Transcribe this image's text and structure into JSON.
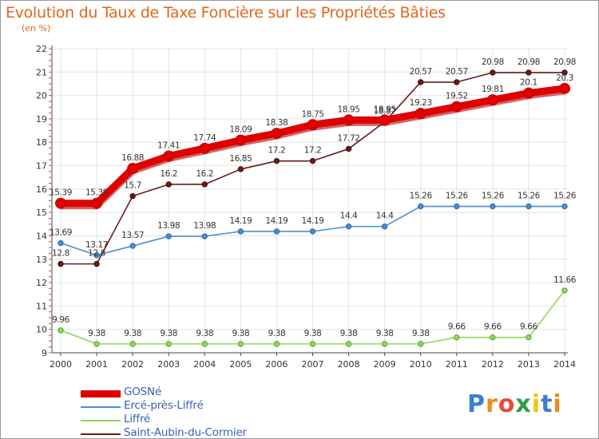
{
  "header": {
    "title": "Evolution du Taux de Taxe Foncière sur les Propriétés Bâties",
    "subtitle": "(en %)"
  },
  "logo": {
    "text": "Proxiti"
  },
  "chart_data": {
    "type": "line",
    "title": "Evolution du Taux de Taxe Foncière sur les Propriétés Bâties",
    "ylabel": "(en %)",
    "xlabel": "",
    "x": [
      2000,
      2001,
      2002,
      2003,
      2004,
      2005,
      2006,
      2007,
      2008,
      2009,
      2010,
      2011,
      2012,
      2013,
      2014
    ],
    "x_labels": [
      "2000",
      "2001",
      "2002",
      "2003",
      "2004",
      "2005",
      "2006",
      "2007",
      "2008",
      "2009",
      "2010",
      "2011",
      "2012",
      "2013",
      "2014"
    ],
    "ylim": [
      9,
      22
    ],
    "yticks": [
      9,
      10,
      11,
      12,
      13,
      14,
      15,
      16,
      17,
      18,
      19,
      20,
      21,
      22
    ],
    "ytick_labels": [
      "9",
      "10",
      "11",
      "12",
      "13",
      "14",
      "15",
      "16",
      "17",
      "18",
      "19",
      "20",
      "21",
      "22"
    ],
    "grid": true,
    "legend_position": "bottom-left",
    "series": [
      {
        "name": "GOSNé",
        "color": "#e00000",
        "values": [
          15.39,
          15.39,
          16.88,
          17.41,
          17.74,
          18.09,
          18.38,
          18.75,
          18.95,
          18.95,
          19.23,
          19.52,
          19.81,
          20.1,
          20.3
        ],
        "labels": [
          "15.39",
          "15.39",
          "16.88",
          "17.41",
          "17.74",
          "18.09",
          "18.38",
          "18.75",
          "18.95",
          "18.95",
          "19.23",
          "19.52",
          "19.81",
          "20.1",
          "20.3"
        ]
      },
      {
        "name": "Ercé-près-Liffré",
        "color": "#4a8fd0",
        "values": [
          13.69,
          13.17,
          13.57,
          13.98,
          13.98,
          14.19,
          14.19,
          14.19,
          14.4,
          14.4,
          15.26,
          15.26,
          15.26,
          15.26,
          15.26
        ],
        "labels": [
          "13.69",
          "13.17",
          "13.57",
          "13.98",
          "13.98",
          "14.19",
          "14.19",
          "14.19",
          "14.4",
          "14.4",
          "15.26",
          "15.26",
          "15.26",
          "15.26",
          "15.26"
        ]
      },
      {
        "name": "Liffré",
        "color": "#8fd65a",
        "values": [
          9.96,
          9.38,
          9.38,
          9.38,
          9.38,
          9.38,
          9.38,
          9.38,
          9.38,
          9.38,
          9.38,
          9.66,
          9.66,
          9.66,
          11.66
        ],
        "labels": [
          "9.96",
          "9.38",
          "9.38",
          "9.38",
          "9.38",
          "9.38",
          "9.38",
          "9.38",
          "9.38",
          "9.38",
          "9.38",
          "9.66",
          "9.66",
          "9.66",
          "11.66"
        ]
      },
      {
        "name": "Saint-Aubin-du-Cormier",
        "color": "#6b1a1a",
        "values": [
          12.8,
          12.8,
          15.7,
          16.2,
          16.2,
          16.85,
          17.2,
          17.2,
          17.72,
          18.87,
          20.57,
          20.57,
          20.98,
          20.98,
          20.98
        ],
        "labels": [
          "12.8",
          "12.8",
          "15.7",
          "16.2",
          "16.2",
          "16.85",
          "17.2",
          "17.2",
          "17.72",
          "18.87",
          "20.57",
          "20.57",
          "20.98",
          "20.98",
          "20.98"
        ]
      }
    ]
  }
}
